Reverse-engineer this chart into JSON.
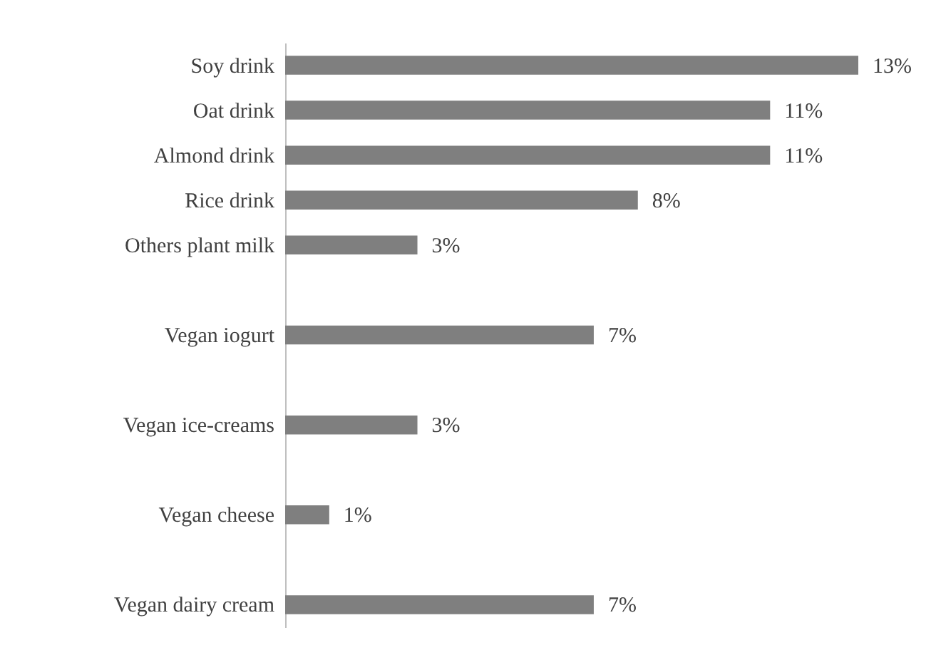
{
  "chart_data": {
    "type": "bar",
    "orientation": "horizontal",
    "categories": [
      "Soy drink",
      "Oat drink",
      "Almond drink",
      "Rice drink",
      "Others plant milk",
      null,
      "Vegan iogurt",
      null,
      "Vegan ice-creams",
      null,
      "Vegan cheese",
      null,
      "Vegan dairy cream"
    ],
    "values": [
      13,
      11,
      11,
      8,
      3,
      null,
      7,
      null,
      3,
      null,
      1,
      null,
      7
    ],
    "value_labels": [
      "13%",
      "11%",
      "11%",
      "8%",
      "3%",
      null,
      "7%",
      null,
      "3%",
      null,
      "1%",
      null,
      "7%"
    ],
    "color": "#7f7f7f",
    "grid": false,
    "tick_labels": "y"
  }
}
